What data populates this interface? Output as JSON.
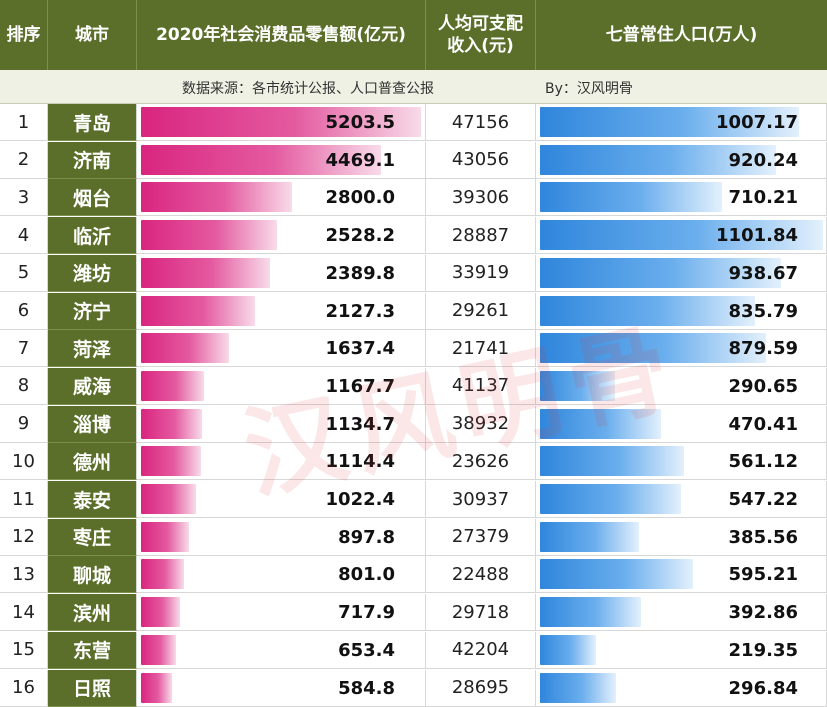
{
  "headers": {
    "rank": "排序",
    "city": "城市",
    "retail": "2020年社会消费品零售额(亿元)",
    "income_line1": "人均可支配",
    "income_line2": "收入(元)",
    "pop": "七普常住人口(万人)"
  },
  "source_note": {
    "left": "数据来源：各市统计公报、人口普查公报",
    "right": "By：汉风明骨"
  },
  "watermark": "汉风明骨",
  "colors": {
    "header_bg": "#5b6f2b",
    "retail_bar": "#d9257f",
    "pop_bar": "#2f86dc"
  },
  "chart_data": {
    "type": "table",
    "columns": [
      "排序",
      "城市",
      "2020年社会消费品零售额(亿元)",
      "人均可支配收入(元)",
      "七普常住人口(万人)"
    ],
    "rows": [
      {
        "rank": "1",
        "city": "青岛",
        "retail": "5203.5",
        "income": "47156",
        "pop": "1007.17"
      },
      {
        "rank": "2",
        "city": "济南",
        "retail": "4469.1",
        "income": "43056",
        "pop": "920.24"
      },
      {
        "rank": "3",
        "city": "烟台",
        "retail": "2800.0",
        "income": "39306",
        "pop": "710.21"
      },
      {
        "rank": "4",
        "city": "临沂",
        "retail": "2528.2",
        "income": "28887",
        "pop": "1101.84"
      },
      {
        "rank": "5",
        "city": "潍坊",
        "retail": "2389.8",
        "income": "33919",
        "pop": "938.67"
      },
      {
        "rank": "6",
        "city": "济宁",
        "retail": "2127.3",
        "income": "29261",
        "pop": "835.79"
      },
      {
        "rank": "7",
        "city": "菏泽",
        "retail": "1637.4",
        "income": "21741",
        "pop": "879.59"
      },
      {
        "rank": "8",
        "city": "威海",
        "retail": "1167.7",
        "income": "41137",
        "pop": "290.65"
      },
      {
        "rank": "9",
        "city": "淄博",
        "retail": "1134.7",
        "income": "38932",
        "pop": "470.41"
      },
      {
        "rank": "10",
        "city": "德州",
        "retail": "1114.4",
        "income": "23626",
        "pop": "561.12"
      },
      {
        "rank": "11",
        "city": "泰安",
        "retail": "1022.4",
        "income": "30937",
        "pop": "547.22"
      },
      {
        "rank": "12",
        "city": "枣庄",
        "retail": "897.8",
        "income": "27379",
        "pop": "385.56"
      },
      {
        "rank": "13",
        "city": "聊城",
        "retail": "801.0",
        "income": "22488",
        "pop": "595.21"
      },
      {
        "rank": "14",
        "city": "滨州",
        "retail": "717.9",
        "income": "29718",
        "pop": "392.86"
      },
      {
        "rank": "15",
        "city": "东营",
        "retail": "653.4",
        "income": "42204",
        "pop": "219.35"
      },
      {
        "rank": "16",
        "city": "日照",
        "retail": "584.8",
        "income": "28695",
        "pop": "296.84"
      }
    ]
  }
}
